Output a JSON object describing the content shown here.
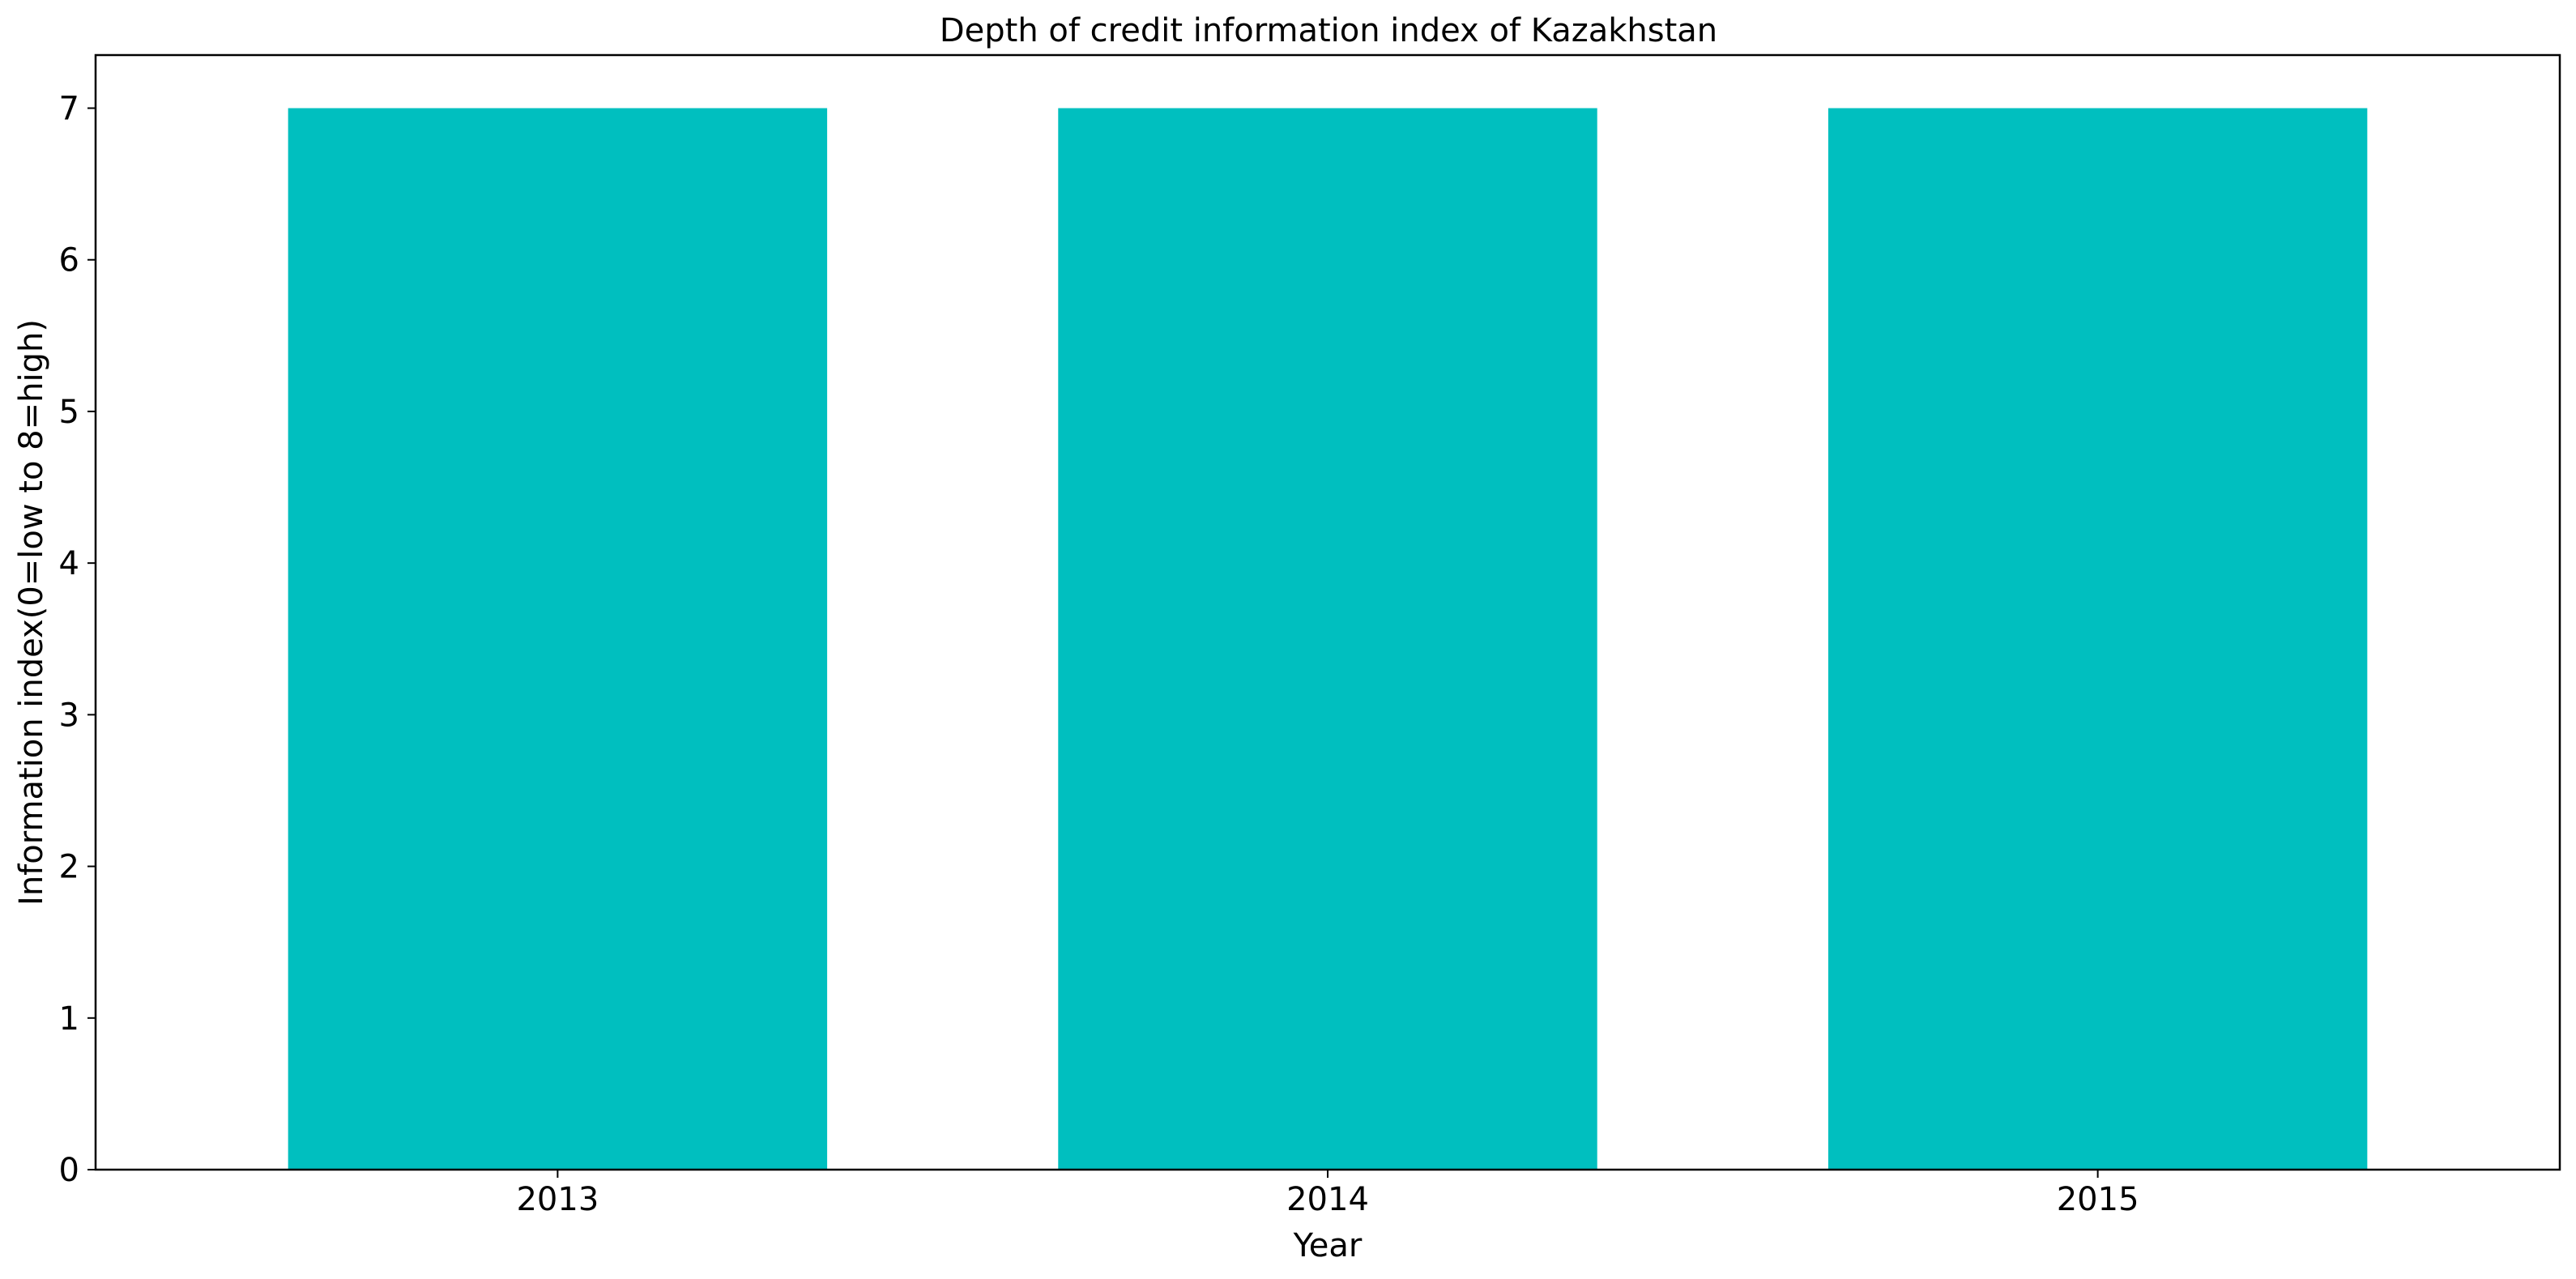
{
  "chart_data": {
    "type": "bar",
    "title": "Depth of credit information index of Kazakhstan",
    "xlabel": "Year",
    "ylabel": "Information index(0=low to 8=high)",
    "categories": [
      "2013",
      "2014",
      "2015"
    ],
    "values": [
      7,
      7,
      7
    ],
    "ylim": [
      0,
      7.35
    ],
    "yticks": [
      0,
      1,
      2,
      3,
      4,
      5,
      6,
      7
    ],
    "bar_color": "#00bfbf",
    "grid": false,
    "legend": "none"
  }
}
